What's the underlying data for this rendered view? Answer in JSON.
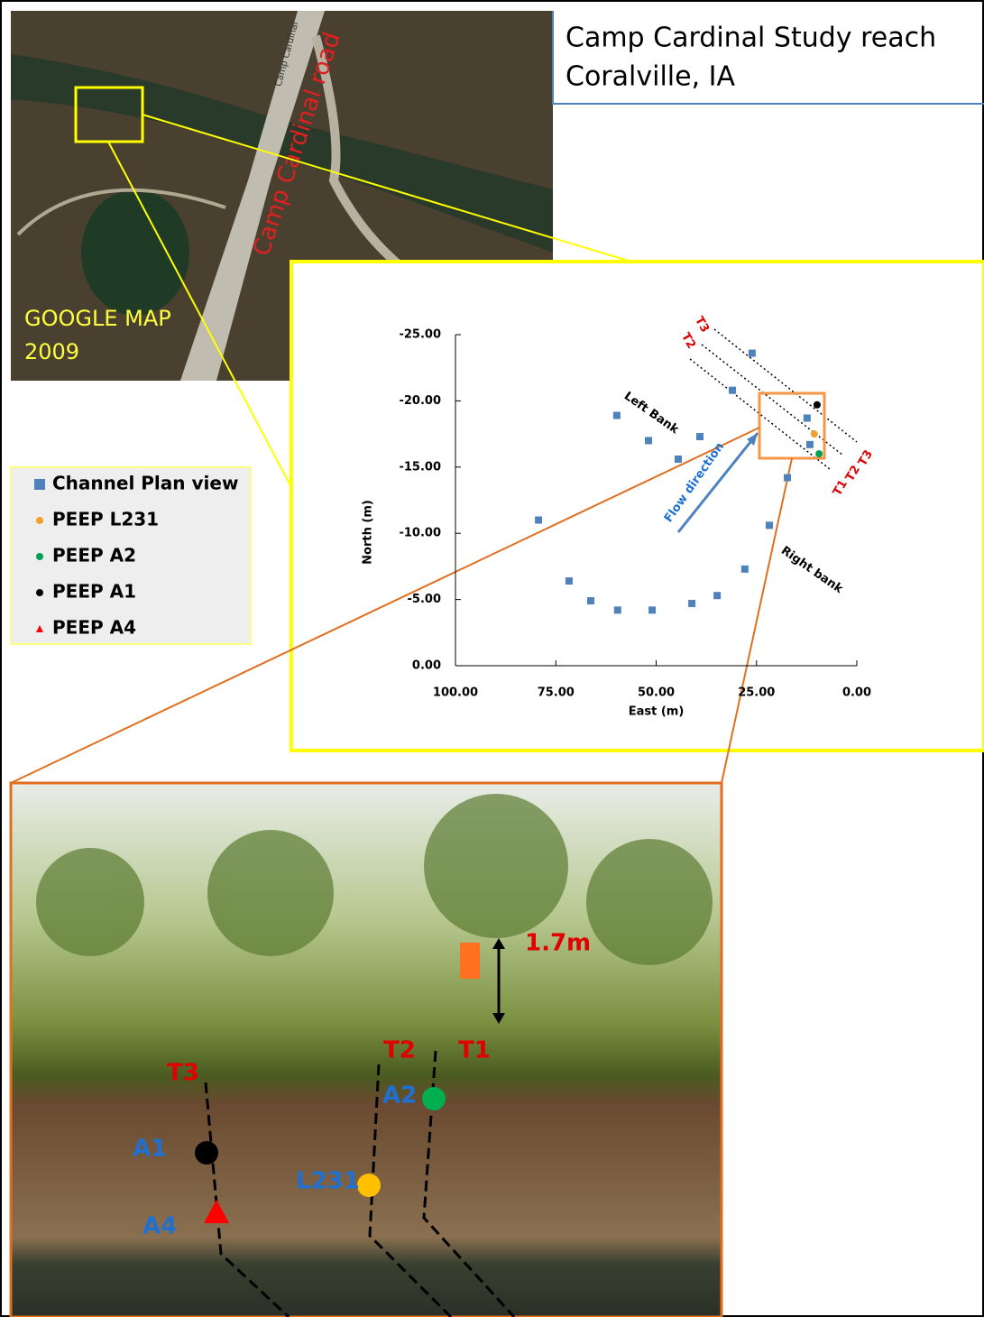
{
  "header": {
    "title_line1": "Camp Cardinal Study reach",
    "title_line2": "Coralville, IA"
  },
  "map": {
    "road_label": "Camp Cardinal",
    "road_name": "Camp Cardinal road",
    "source_line1": "GOOGLE MAP",
    "source_line2": "2009"
  },
  "chart_data": {
    "type": "scatter",
    "xlabel": "East (m)",
    "ylabel": "North (m)",
    "xlim": [
      100,
      0
    ],
    "ylim": [
      0,
      -25
    ],
    "xticks": [
      {
        "value": 100,
        "label": "100.00"
      },
      {
        "value": 75,
        "label": "75.00"
      },
      {
        "value": 50,
        "label": "50.00"
      },
      {
        "value": 25,
        "label": "25.00"
      },
      {
        "value": 0,
        "label": "0.00"
      }
    ],
    "yticks": [
      {
        "value": 0,
        "label": "0.00"
      },
      {
        "value": -5,
        "label": "-5.00"
      },
      {
        "value": -10,
        "label": "-10.00"
      },
      {
        "value": -15,
        "label": "-15.00"
      },
      {
        "value": -20,
        "label": "-20.00"
      },
      {
        "value": -25,
        "label": "-25.00"
      }
    ],
    "series": [
      {
        "name": "Channel Plan view",
        "color": "#4f81bd",
        "marker": "square",
        "x": [
          79.3,
          71.7,
          66.3,
          59.6,
          51.0,
          41.1,
          34.8,
          27.9,
          21.8,
          17.3,
          11.7,
          12.4,
          26.1,
          31.0,
          39.1,
          44.5,
          51.9,
          59.8
        ],
        "values": [
          -11.0,
          -6.4,
          -4.9,
          -4.2,
          -4.2,
          -4.7,
          -5.3,
          -7.3,
          -10.6,
          -14.2,
          -16.7,
          -18.7,
          -23.6,
          -20.8,
          -17.3,
          -15.6,
          -17.0,
          -18.9
        ]
      },
      {
        "name": "PEEP L231",
        "color": "#f0a030",
        "marker": "circle",
        "x": [
          10.6
        ],
        "values": [
          -17.5
        ]
      },
      {
        "name": "PEEP A2",
        "color": "#00a050",
        "marker": "circle",
        "x": [
          9.4
        ],
        "values": [
          -16.0
        ]
      },
      {
        "name": "PEEP A1",
        "color": "#000000",
        "marker": "circle",
        "x": [
          9.9
        ],
        "values": [
          -19.7
        ]
      },
      {
        "name": "PEEP A4",
        "color": "#ff0000",
        "marker": "triangle",
        "x": [],
        "values": []
      }
    ],
    "annotations": [
      "Left Bank",
      "Right bank",
      "Flow direction",
      "T3",
      "T2",
      "T3",
      "T2",
      "T1"
    ]
  },
  "photo": {
    "height": "1.7m",
    "labels": [
      "T3",
      "T2",
      "T1",
      "A2",
      "A1",
      "L231",
      "A4"
    ]
  }
}
